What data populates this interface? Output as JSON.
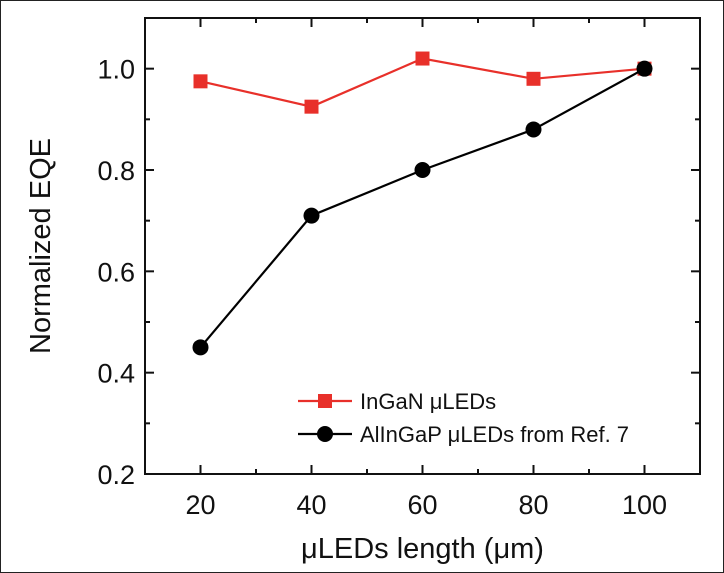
{
  "chart_data": {
    "type": "line",
    "title": "",
    "xlabel": "μLEDs length (μm)",
    "ylabel": "Normalized EQE",
    "xlim": [
      10,
      110
    ],
    "ylim": [
      0.2,
      1.1
    ],
    "x_ticks": [
      20,
      40,
      60,
      80,
      100
    ],
    "x_tick_labels": [
      "20",
      "40",
      "60",
      "80",
      "100"
    ],
    "y_ticks": [
      0.2,
      0.4,
      0.6,
      0.8,
      1.0
    ],
    "y_tick_labels": [
      "0.2",
      "0.4",
      "0.6",
      "0.8",
      "1.0"
    ],
    "grid": false,
    "legend_position": "bottom-right",
    "series": [
      {
        "name": "InGaN μLEDs",
        "color": "#e8302a",
        "marker": "square",
        "x": [
          20,
          40,
          60,
          80,
          100
        ],
        "y": [
          0.975,
          0.925,
          1.02,
          0.98,
          1.0
        ]
      },
      {
        "name": "AlInGaP μLEDs from Ref. 7",
        "color": "#000000",
        "marker": "circle",
        "x": [
          20,
          40,
          60,
          80,
          100
        ],
        "y": [
          0.45,
          0.71,
          0.8,
          0.88,
          1.0
        ]
      }
    ]
  }
}
